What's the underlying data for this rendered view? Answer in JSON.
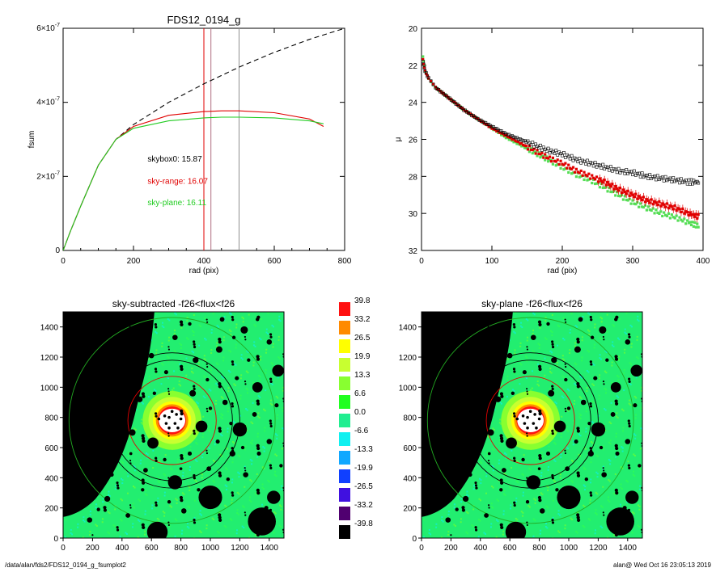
{
  "chart_data": [
    {
      "type": "line",
      "title": "FDS12_0194_g",
      "xlabel": "rad (pix)",
      "ylabel": "fsum",
      "xlim": [
        0,
        800
      ],
      "ylim": [
        0,
        6e-07
      ],
      "x_ticks": [
        "0",
        "200",
        "400",
        "600",
        "800"
      ],
      "y_ticks": [
        {
          "v": 0,
          "label": "0"
        },
        {
          "v": 2e-07,
          "mant": "2",
          "exp": "-7"
        },
        {
          "v": 4e-07,
          "mant": "4",
          "exp": "-7"
        },
        {
          "v": 6e-07,
          "mant": "6",
          "exp": "-7"
        }
      ],
      "x10": "×10",
      "vlines": [
        {
          "x": 400,
          "color": "#e00000"
        },
        {
          "x": 420,
          "color": "#b07080"
        },
        {
          "x": 500,
          "color": "#909090"
        }
      ],
      "series": [
        {
          "color": "#000000",
          "dash": true,
          "x": [
            0,
            20,
            50,
            100,
            150,
            200,
            300,
            400,
            500,
            600,
            700,
            800
          ],
          "y": [
            0,
            5e-08,
            1.2e-07,
            2.3e-07,
            3e-07,
            3.4e-07,
            4e-07,
            4.5e-07,
            4.95e-07,
            5.35e-07,
            5.7e-07,
            6e-07
          ]
        },
        {
          "color": "#e00000",
          "dash": false,
          "x": [
            0,
            20,
            50,
            100,
            150,
            200,
            300,
            400,
            450,
            500,
            600,
            700,
            740
          ],
          "y": [
            0,
            5e-08,
            1.2e-07,
            2.3e-07,
            3e-07,
            3.35e-07,
            3.65e-07,
            3.75e-07,
            3.77e-07,
            3.77e-07,
            3.72e-07,
            3.55e-07,
            3.35e-07
          ]
        },
        {
          "color": "#22cc22",
          "dash": false,
          "x": [
            0,
            20,
            50,
            100,
            150,
            200,
            300,
            400,
            450,
            500,
            600,
            700,
            740
          ],
          "y": [
            0,
            5e-08,
            1.2e-07,
            2.3e-07,
            3e-07,
            3.3e-07,
            3.5e-07,
            3.58e-07,
            3.6e-07,
            3.6e-07,
            3.58e-07,
            3.5e-07,
            3.42e-07
          ]
        }
      ],
      "annotations": [
        {
          "text": "skybox0: 15.87",
          "color": "#000000",
          "x": 240,
          "y": 2.4e-07
        },
        {
          "text": "sky-range: 16.07",
          "color": "#e00000",
          "x": 240,
          "y": 1.8e-07
        },
        {
          "text": "sky-plane: 16.11",
          "color": "#22cc22",
          "x": 240,
          "y": 1.22e-07
        }
      ]
    },
    {
      "type": "scatter",
      "xlabel": "rad (pix)",
      "ylabel": "μ",
      "xlim": [
        0,
        400
      ],
      "ylim": [
        32,
        20
      ],
      "x_ticks": [
        "0",
        "100",
        "200",
        "300",
        "400"
      ],
      "y_ticks": [
        "20",
        "22",
        "24",
        "26",
        "28",
        "30",
        "32"
      ],
      "series": [
        {
          "color": "#000000",
          "x": [
            2,
            5,
            10,
            20,
            40,
            60,
            80,
            100,
            120,
            140,
            160,
            180,
            200,
            220,
            240,
            260,
            280,
            300,
            320,
            340,
            360,
            380,
            395
          ],
          "y": [
            21.8,
            22.3,
            22.7,
            23.2,
            23.8,
            24.4,
            24.9,
            25.3,
            25.7,
            26.0,
            26.3,
            26.6,
            26.8,
            27.1,
            27.3,
            27.5,
            27.7,
            27.8,
            28.0,
            28.1,
            28.2,
            28.3,
            28.3
          ]
        },
        {
          "color": "#e00000",
          "x": [
            2,
            5,
            10,
            20,
            40,
            60,
            80,
            100,
            120,
            140,
            160,
            180,
            200,
            220,
            240,
            260,
            280,
            300,
            320,
            340,
            360,
            380,
            395
          ],
          "y": [
            21.7,
            22.3,
            22.7,
            23.2,
            23.8,
            24.4,
            24.9,
            25.4,
            25.8,
            26.2,
            26.6,
            27.0,
            27.3,
            27.7,
            28.0,
            28.3,
            28.7,
            29.0,
            29.3,
            29.5,
            29.7,
            30.0,
            30.2
          ]
        },
        {
          "color": "#55dd55",
          "x": [
            2,
            5,
            10,
            20,
            40,
            60,
            80,
            100,
            120,
            140,
            160,
            180,
            200,
            220,
            240,
            260,
            280,
            300,
            320,
            340,
            360,
            380,
            395
          ],
          "y": [
            21.5,
            22.3,
            22.7,
            23.2,
            23.8,
            24.4,
            24.9,
            25.4,
            25.9,
            26.3,
            26.7,
            27.1,
            27.5,
            27.9,
            28.2,
            28.6,
            29.0,
            29.4,
            29.7,
            30.0,
            30.2,
            30.5,
            30.7
          ]
        }
      ]
    },
    {
      "type": "heatmap",
      "title": "sky-subtracted -f26<flux<f26",
      "xlim": [
        0,
        1500
      ],
      "ylim": [
        0,
        1500
      ],
      "x_ticks": [
        "0",
        "200",
        "400",
        "600",
        "800",
        "1000",
        "1200",
        "1400"
      ],
      "y_ticks": [
        "0",
        "200",
        "400",
        "600",
        "800",
        "1000",
        "1200",
        "1400"
      ]
    },
    {
      "type": "heatmap",
      "title": "sky-plane -f26<flux<f26",
      "xlim": [
        0,
        1500
      ],
      "ylim": [
        0,
        1500
      ],
      "x_ticks": [
        "0",
        "200",
        "400",
        "600",
        "800",
        "1000",
        "1200",
        "1400"
      ],
      "y_ticks": [
        "0",
        "200",
        "400",
        "600",
        "800",
        "1000",
        "1200",
        "1400"
      ]
    }
  ],
  "colorbar": {
    "labels": [
      "39.8",
      "33.2",
      "26.5",
      "19.9",
      "13.3",
      "6.6",
      "0.0",
      "-6.6",
      "-13.3",
      "-19.9",
      "-26.5",
      "-33.2",
      "-39.8"
    ],
    "colors": [
      "#ff1010",
      "#ff8a00",
      "#ffff00",
      "#c8ff30",
      "#88ff30",
      "#20ff20",
      "#20ee90",
      "#10f0f0",
      "#10a8ff",
      "#1040ff",
      "#4010e0",
      "#500070",
      "#000000"
    ]
  },
  "image": {
    "galaxy_center": [
      740,
      780
    ],
    "circles": [
      {
        "r": 300,
        "color": "#e00000"
      },
      {
        "r": 410,
        "color": "#000000"
      },
      {
        "r": 460,
        "color": "#000000"
      },
      {
        "r": 700,
        "color": "#22aa22"
      }
    ],
    "stars": [
      [
        760,
        370,
        48
      ],
      [
        1000,
        270,
        80
      ],
      [
        1350,
        110,
        95
      ],
      [
        640,
        40,
        70
      ],
      [
        1430,
        270,
        45
      ],
      [
        1200,
        720,
        48
      ],
      [
        940,
        740,
        40
      ],
      [
        610,
        630,
        38
      ],
      [
        1460,
        1110,
        40
      ],
      [
        1320,
        1000,
        35
      ],
      [
        880,
        960,
        22
      ],
      [
        1100,
        900,
        18
      ],
      [
        520,
        920,
        20
      ],
      [
        470,
        700,
        22
      ],
      [
        380,
        560,
        18
      ],
      [
        1230,
        1380,
        25
      ],
      [
        1060,
        1250,
        22
      ],
      [
        900,
        1180,
        20
      ],
      [
        760,
        1330,
        18
      ],
      [
        1400,
        1300,
        18
      ],
      [
        300,
        260,
        20
      ],
      [
        180,
        120,
        18
      ],
      [
        440,
        150,
        16
      ],
      [
        820,
        180,
        18
      ],
      [
        1150,
        560,
        20
      ],
      [
        1300,
        820,
        16
      ],
      [
        1400,
        640,
        18
      ],
      [
        600,
        1210,
        18
      ],
      [
        450,
        1380,
        16
      ],
      [
        990,
        460,
        16
      ],
      [
        1240,
        420,
        18
      ],
      [
        560,
        450,
        16
      ],
      [
        860,
        560,
        14
      ],
      [
        1050,
        640,
        14
      ],
      [
        700,
        1100,
        14
      ],
      [
        980,
        1050,
        12
      ],
      [
        1180,
        1060,
        14
      ],
      [
        1330,
        560,
        14
      ],
      [
        330,
        420,
        14
      ],
      [
        240,
        190,
        12
      ],
      [
        1450,
        880,
        14
      ],
      [
        1080,
        1450,
        16
      ],
      [
        620,
        960,
        12
      ],
      [
        430,
        1080,
        14
      ],
      [
        1260,
        1180,
        12
      ],
      [
        1380,
        200,
        14
      ],
      [
        720,
        240,
        12
      ],
      [
        540,
        320,
        12
      ],
      [
        920,
        320,
        12
      ],
      [
        1120,
        390,
        12
      ],
      [
        690,
        520,
        12
      ],
      [
        460,
        560,
        10
      ],
      [
        800,
        460,
        10
      ],
      [
        1000,
        860,
        12
      ],
      [
        1140,
        760,
        12
      ],
      [
        1220,
        600,
        12
      ],
      [
        860,
        1420,
        12
      ],
      [
        1160,
        1330,
        12
      ],
      [
        1320,
        1450,
        12
      ],
      [
        1480,
        480,
        12
      ]
    ],
    "core": [
      [
        700,
        760
      ],
      [
        720,
        800
      ],
      [
        760,
        760
      ],
      [
        770,
        820
      ],
      [
        690,
        810
      ],
      [
        740,
        840
      ],
      [
        650,
        790
      ],
      [
        800,
        790
      ],
      [
        720,
        730
      ],
      [
        780,
        730
      ]
    ]
  },
  "footer": {
    "left": "/data/alan/fds2/FDS12_0194_g_fsumplot2",
    "right": "alan@  Wed Oct 16 23:05:13 2019"
  }
}
